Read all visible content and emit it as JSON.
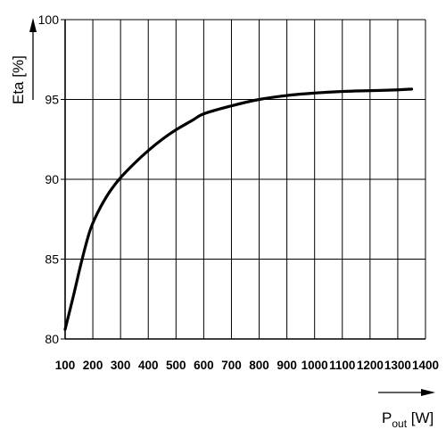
{
  "chart_data": {
    "type": "line",
    "title": "",
    "ylabel": "Eta [%]",
    "xlabel": {
      "base": "P",
      "subscript": "out",
      "unit": " [W]"
    },
    "xlim": [
      100,
      1400
    ],
    "ylim": [
      80,
      100
    ],
    "x_ticks": [
      100,
      200,
      300,
      400,
      500,
      600,
      700,
      800,
      900,
      1000,
      1100,
      1200,
      1300,
      1400
    ],
    "y_ticks": [
      80,
      85,
      90,
      95,
      100
    ],
    "grid": true,
    "series": [
      {
        "x": [
          100,
          130,
          160,
          190,
          220,
          260,
          300,
          350,
          400,
          450,
          500,
          560,
          600,
          700,
          800,
          900,
          1000,
          1100,
          1200,
          1300,
          1350
        ],
        "y": [
          80.6,
          82.7,
          84.9,
          86.8,
          88.0,
          89.2,
          90.1,
          91.0,
          91.8,
          92.5,
          93.1,
          93.7,
          94.1,
          94.6,
          95.0,
          95.25,
          95.4,
          95.5,
          95.55,
          95.6,
          95.65
        ]
      }
    ]
  }
}
